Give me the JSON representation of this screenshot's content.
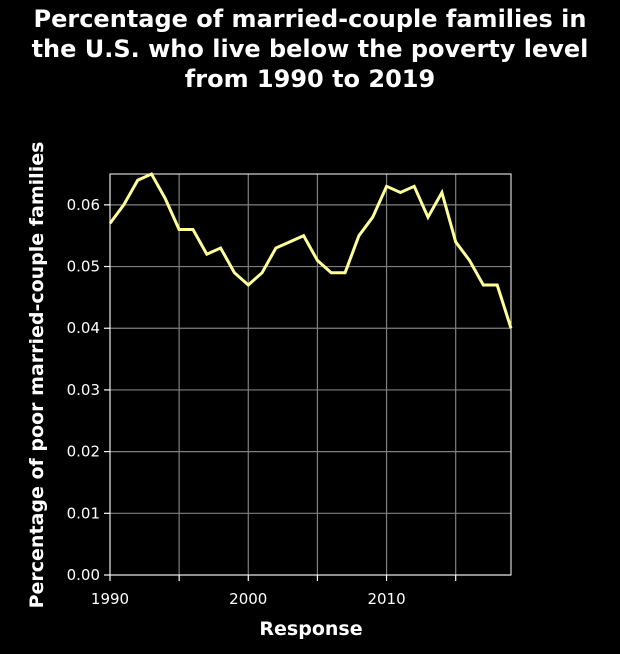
{
  "chart_data": {
    "type": "line",
    "title_lines": [
      "Percentage of married-couple families in",
      "the U.S. who live below the poverty level",
      "from 1990 to 2019"
    ],
    "xlabel": "Response",
    "ylabel": "Percentage of poor married-couple families",
    "xlim": [
      1990,
      2019
    ],
    "ylim": [
      0.0,
      0.065
    ],
    "x_ticks": [
      1990,
      1995,
      2000,
      2005,
      2010,
      2015
    ],
    "x_tick_labels": [
      "1990",
      "",
      "2000",
      "",
      "2010",
      ""
    ],
    "y_ticks": [
      0.0,
      0.01,
      0.02,
      0.03,
      0.04,
      0.05,
      0.06
    ],
    "y_tick_labels": [
      "0.00",
      "0.01",
      "0.02",
      "0.03",
      "0.04",
      "0.05",
      "0.06"
    ],
    "grid": true,
    "colors": {
      "background": "#000000",
      "line": "#ffff99",
      "grid": "#808080",
      "text": "#ffffff"
    },
    "series": [
      {
        "x": [
          1990,
          1991,
          1992,
          1993,
          1994,
          1995,
          1996,
          1997,
          1998,
          1999,
          2000,
          2001,
          2002,
          2003,
          2004,
          2005,
          2006,
          2007,
          2008,
          2009,
          2010,
          2011,
          2012,
          2013,
          2014,
          2015,
          2016,
          2017,
          2018,
          2019
        ],
        "values": [
          0.057,
          0.06,
          0.064,
          0.065,
          0.061,
          0.056,
          0.056,
          0.052,
          0.053,
          0.049,
          0.047,
          0.049,
          0.053,
          0.054,
          0.055,
          0.051,
          0.049,
          0.049,
          0.055,
          0.058,
          0.063,
          0.062,
          0.063,
          0.058,
          0.062,
          0.054,
          0.051,
          0.047,
          0.047,
          0.04
        ]
      }
    ]
  }
}
